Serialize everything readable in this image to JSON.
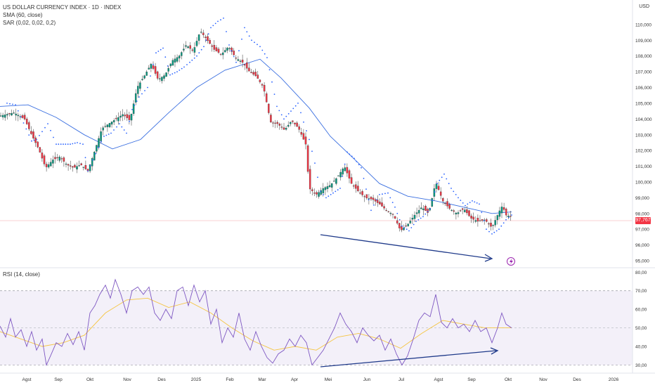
{
  "header": {
    "title": "US DOLLAR CURRENCY INDEX · 1D · INDEX",
    "indicator_sma": "SMA (60, close)",
    "indicator_sar": "SAR (0,02, 0,02, 0,2)",
    "indicator_rsi": "RSI (14, close)",
    "currency": "USD"
  },
  "price_badge": "97,767",
  "chart_data": [
    {
      "type": "candlestick",
      "title": "US DOLLAR CURRENCY INDEX · 1D · INDEX",
      "ylim": [
        94.6,
        111.2
      ],
      "yticks": [
        "110,000",
        "109,000",
        "108,000",
        "107,000",
        "106,000",
        "105,000",
        "104,000",
        "103,000",
        "102,000",
        "101,000",
        "100,000",
        "99,000",
        "98,000",
        "97,000",
        "96,000",
        "95,000"
      ],
      "ytick_values": [
        110,
        109,
        108,
        107,
        106,
        105,
        104,
        103,
        102,
        101,
        100,
        99,
        98,
        97,
        96,
        95
      ],
      "last_price": 97.767,
      "x_labels": [
        "Agst",
        "Sep",
        "Okt",
        "Nov",
        "Des",
        "2025",
        "Feb",
        "Mar",
        "Apr",
        "Mei",
        "Jun",
        "Jul",
        "Agst",
        "Sep",
        "Okt",
        "Nov",
        "Des",
        "2026"
      ],
      "price_path": [
        [
          0,
          104.2
        ],
        [
          20,
          104.4
        ],
        [
          35,
          104.0
        ],
        [
          45,
          103.0
        ],
        [
          55,
          102.1
        ],
        [
          65,
          100.9
        ],
        [
          75,
          101.4
        ],
        [
          85,
          101.6
        ],
        [
          95,
          101.1
        ],
        [
          105,
          100.9
        ],
        [
          115,
          101.1
        ],
        [
          125,
          100.7
        ],
        [
          135,
          102.0
        ],
        [
          145,
          103.4
        ],
        [
          155,
          103.7
        ],
        [
          165,
          104.0
        ],
        [
          175,
          104.3
        ],
        [
          185,
          103.9
        ],
        [
          195,
          106.0
        ],
        [
          205,
          106.7
        ],
        [
          215,
          107.5
        ],
        [
          225,
          106.5
        ],
        [
          235,
          106.8
        ],
        [
          245,
          107.7
        ],
        [
          255,
          108.0
        ],
        [
          265,
          108.7
        ],
        [
          275,
          108.3
        ],
        [
          285,
          109.6
        ],
        [
          295,
          109.0
        ],
        [
          305,
          108.4
        ],
        [
          315,
          108.1
        ],
        [
          325,
          108.6
        ],
        [
          335,
          107.9
        ],
        [
          345,
          107.6
        ],
        [
          355,
          107.0
        ],
        [
          365,
          106.7
        ],
        [
          375,
          106.0
        ],
        [
          385,
          103.8
        ],
        [
          395,
          103.7
        ],
        [
          405,
          103.3
        ],
        [
          415,
          103.9
        ],
        [
          425,
          103.4
        ],
        [
          435,
          102.4
        ],
        [
          440,
          99.6
        ],
        [
          450,
          99.2
        ],
        [
          460,
          99.6
        ],
        [
          470,
          99.8
        ],
        [
          480,
          100.3
        ],
        [
          490,
          101.0
        ],
        [
          500,
          99.9
        ],
        [
          510,
          99.4
        ],
        [
          520,
          99.0
        ],
        [
          530,
          98.9
        ],
        [
          540,
          98.6
        ],
        [
          550,
          98.2
        ],
        [
          560,
          97.9
        ],
        [
          570,
          96.9
        ],
        [
          580,
          97.3
        ],
        [
          590,
          97.9
        ],
        [
          600,
          98.4
        ],
        [
          610,
          98.0
        ],
        [
          620,
          100.0
        ],
        [
          630,
          98.8
        ],
        [
          640,
          98.3
        ],
        [
          650,
          98.0
        ],
        [
          660,
          98.3
        ],
        [
          670,
          97.7
        ],
        [
          680,
          97.5
        ],
        [
          690,
          97.6
        ],
        [
          700,
          97.1
        ],
        [
          710,
          98.1
        ],
        [
          715,
          98.5
        ],
        [
          720,
          97.9
        ],
        [
          728,
          97.77
        ]
      ],
      "sma_path": [
        [
          0,
          104.8
        ],
        [
          40,
          104.9
        ],
        [
          80,
          104.1
        ],
        [
          120,
          103.0
        ],
        [
          160,
          102.1
        ],
        [
          200,
          102.7
        ],
        [
          240,
          104.4
        ],
        [
          280,
          106.0
        ],
        [
          320,
          107.1
        ],
        [
          370,
          107.8
        ],
        [
          400,
          106.6
        ],
        [
          440,
          104.7
        ],
        [
          470,
          102.9
        ],
        [
          510,
          101.2
        ],
        [
          540,
          99.9
        ],
        [
          580,
          99.1
        ],
        [
          620,
          98.8
        ],
        [
          660,
          98.4
        ],
        [
          700,
          98.0
        ],
        [
          728,
          98.1
        ]
      ],
      "sar_points": [
        [
          10,
          105.0
        ],
        [
          22,
          104.9
        ],
        [
          45,
          102.6
        ],
        [
          52,
          102.7
        ],
        [
          60,
          103.2
        ],
        [
          68,
          103.7
        ],
        [
          80,
          102.4
        ],
        [
          90,
          102.4
        ],
        [
          100,
          102.4
        ],
        [
          110,
          102.5
        ],
        [
          118,
          102.4
        ],
        [
          125,
          100.7
        ],
        [
          132,
          101.4
        ],
        [
          140,
          102.2
        ],
        [
          148,
          102.9
        ],
        [
          158,
          103.1
        ],
        [
          170,
          103.7
        ],
        [
          180,
          103.1
        ],
        [
          188,
          104.6
        ],
        [
          198,
          105.4
        ],
        [
          210,
          106.0
        ],
        [
          222,
          108.2
        ],
        [
          232,
          108.5
        ],
        [
          242,
          106.8
        ],
        [
          252,
          107.0
        ],
        [
          262,
          107.3
        ],
        [
          270,
          107.6
        ],
        [
          280,
          108.0
        ],
        [
          290,
          108.6
        ],
        [
          300,
          109.8
        ],
        [
          310,
          110.2
        ],
        [
          318,
          110.4
        ],
        [
          326,
          108.7
        ],
        [
          336,
          107.6
        ],
        [
          348,
          109.8
        ],
        [
          358,
          109.0
        ],
        [
          370,
          108.6
        ],
        [
          380,
          107.9
        ],
        [
          394,
          104.8
        ],
        [
          404,
          104.0
        ],
        [
          414,
          104.5
        ],
        [
          424,
          105.0
        ],
        [
          432,
          103.8
        ],
        [
          440,
          102.7
        ],
        [
          448,
          101.2
        ],
        [
          456,
          99.4
        ],
        [
          464,
          99.0
        ],
        [
          474,
          99.3
        ],
        [
          484,
          99.6
        ],
        [
          494,
          101.9
        ],
        [
          504,
          101.5
        ],
        [
          514,
          100.9
        ],
        [
          528,
          98.2
        ],
        [
          540,
          99.2
        ],
        [
          552,
          99.3
        ],
        [
          562,
          98.4
        ],
        [
          572,
          97.2
        ],
        [
          582,
          96.9
        ],
        [
          592,
          97.5
        ],
        [
          602,
          97.8
        ],
        [
          612,
          98.3
        ],
        [
          622,
          99.9
        ],
        [
          632,
          100.5
        ],
        [
          642,
          99.6
        ],
        [
          652,
          99.0
        ],
        [
          662,
          98.5
        ],
        [
          672,
          98.8
        ],
        [
          682,
          98.6
        ],
        [
          692,
          97.0
        ],
        [
          700,
          96.7
        ],
        [
          710,
          97.0
        ],
        [
          720,
          97.6
        ],
        [
          728,
          97.9
        ]
      ]
    },
    {
      "type": "line",
      "title": "RSI (14, close)",
      "ylim": [
        26,
        82
      ],
      "yticks": [
        "80,00",
        "70,00",
        "60,00",
        "50,00",
        "40,00",
        "30,00"
      ],
      "ytick_values": [
        80,
        70,
        60,
        50,
        40,
        30
      ],
      "band": [
        30,
        70
      ],
      "rsi_path": [
        [
          0,
          51
        ],
        [
          8,
          45
        ],
        [
          15,
          55
        ],
        [
          22,
          45
        ],
        [
          30,
          49
        ],
        [
          38,
          40
        ],
        [
          45,
          48
        ],
        [
          52,
          38
        ],
        [
          60,
          44
        ],
        [
          66,
          30
        ],
        [
          72,
          35
        ],
        [
          80,
          42
        ],
        [
          88,
          40
        ],
        [
          96,
          47
        ],
        [
          104,
          41
        ],
        [
          112,
          48
        ],
        [
          120,
          38
        ],
        [
          128,
          58
        ],
        [
          135,
          62
        ],
        [
          142,
          68
        ],
        [
          150,
          73
        ],
        [
          157,
          66
        ],
        [
          164,
          76
        ],
        [
          172,
          68
        ],
        [
          180,
          58
        ],
        [
          188,
          70
        ],
        [
          196,
          72
        ],
        [
          204,
          68
        ],
        [
          212,
          72
        ],
        [
          220,
          58
        ],
        [
          228,
          54
        ],
        [
          236,
          60
        ],
        [
          244,
          55
        ],
        [
          252,
          70
        ],
        [
          260,
          72
        ],
        [
          268,
          62
        ],
        [
          276,
          73
        ],
        [
          284,
          64
        ],
        [
          292,
          70
        ],
        [
          300,
          52
        ],
        [
          308,
          60
        ],
        [
          316,
          42
        ],
        [
          324,
          50
        ],
        [
          332,
          45
        ],
        [
          340,
          58
        ],
        [
          348,
          44
        ],
        [
          356,
          38
        ],
        [
          364,
          48
        ],
        [
          372,
          40
        ],
        [
          380,
          34
        ],
        [
          388,
          31
        ],
        [
          396,
          36
        ],
        [
          404,
          38
        ],
        [
          412,
          44
        ],
        [
          420,
          40
        ],
        [
          428,
          46
        ],
        [
          436,
          42
        ],
        [
          444,
          30
        ],
        [
          452,
          34
        ],
        [
          460,
          38
        ],
        [
          468,
          44
        ],
        [
          476,
          50
        ],
        [
          484,
          58
        ],
        [
          492,
          52
        ],
        [
          500,
          48
        ],
        [
          508,
          42
        ],
        [
          516,
          50
        ],
        [
          524,
          46
        ],
        [
          532,
          43
        ],
        [
          540,
          46
        ],
        [
          548,
          38
        ],
        [
          556,
          44
        ],
        [
          564,
          36
        ],
        [
          572,
          30
        ],
        [
          580,
          35
        ],
        [
          588,
          44
        ],
        [
          596,
          54
        ],
        [
          604,
          58
        ],
        [
          612,
          56
        ],
        [
          620,
          68
        ],
        [
          628,
          53
        ],
        [
          636,
          50
        ],
        [
          644,
          55
        ],
        [
          652,
          50
        ],
        [
          660,
          52
        ],
        [
          668,
          48
        ],
        [
          676,
          54
        ],
        [
          684,
          48
        ],
        [
          692,
          50
        ],
        [
          700,
          42
        ],
        [
          708,
          50
        ],
        [
          714,
          58
        ],
        [
          720,
          52
        ],
        [
          728,
          50
        ]
      ],
      "rsi_ma_path": [
        [
          0,
          48
        ],
        [
          30,
          44
        ],
        [
          60,
          40
        ],
        [
          90,
          42
        ],
        [
          120,
          46
        ],
        [
          150,
          58
        ],
        [
          180,
          65
        ],
        [
          210,
          66
        ],
        [
          240,
          61
        ],
        [
          270,
          64
        ],
        [
          300,
          58
        ],
        [
          330,
          50
        ],
        [
          360,
          43
        ],
        [
          390,
          38
        ],
        [
          420,
          40
        ],
        [
          450,
          38
        ],
        [
          480,
          45
        ],
        [
          510,
          47
        ],
        [
          540,
          44
        ],
        [
          570,
          39
        ],
        [
          600,
          47
        ],
        [
          630,
          54
        ],
        [
          660,
          52
        ],
        [
          690,
          50
        ],
        [
          728,
          50
        ]
      ]
    }
  ],
  "x_axis_labels": [
    "Agst",
    "Sep",
    "Okt",
    "Nov",
    "Des",
    "2025",
    "Feb",
    "Mar",
    "Apr",
    "Mei",
    "Jun",
    "Jul",
    "Agst",
    "Sep",
    "Okt",
    "Nov",
    "Des",
    "2026"
  ]
}
